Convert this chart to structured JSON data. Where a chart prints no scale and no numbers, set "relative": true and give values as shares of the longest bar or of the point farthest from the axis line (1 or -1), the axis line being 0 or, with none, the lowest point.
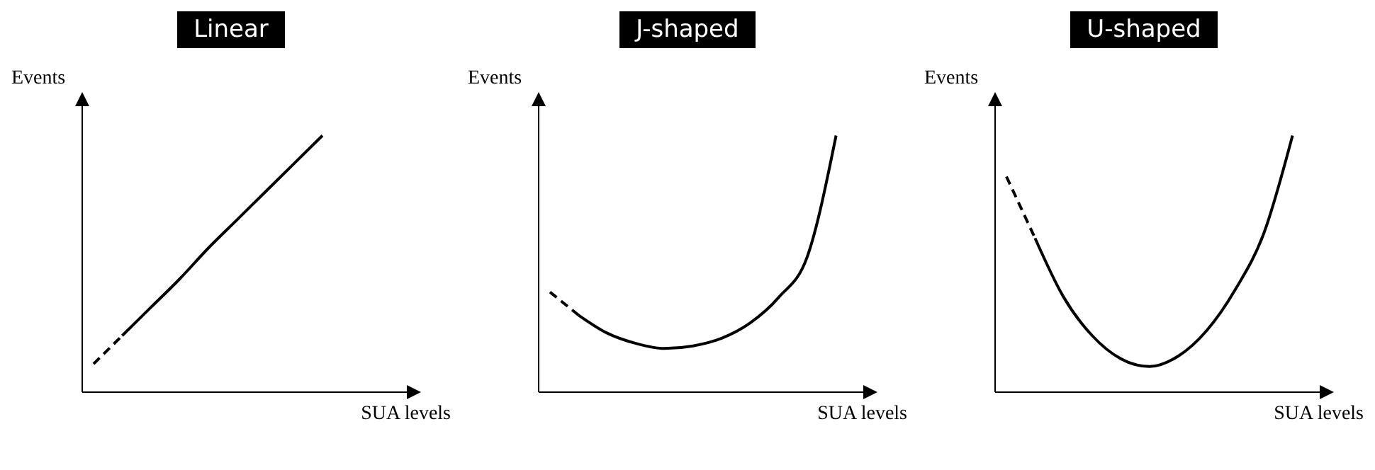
{
  "chart_data": [
    {
      "type": "line",
      "title": "Linear",
      "xlabel": "SUA levels",
      "ylabel": "Events",
      "relative": true,
      "categories": [
        null,
        null,
        null,
        null,
        null,
        null,
        null,
        null,
        null,
        null,
        null,
        null
      ],
      "series": [
        {
          "color": "#000000",
          "line_style": "dashed",
          "values": [
            0.11,
            0.22,
            null,
            null,
            null,
            null,
            null,
            null,
            null,
            null,
            null,
            null
          ]
        },
        {
          "color": "#000000",
          "line_style": "solid",
          "values": [
            null,
            0.22,
            0.33,
            0.44,
            0.56,
            0.67,
            0.78,
            0.89,
            1.0,
            null,
            null,
            null
          ]
        }
      ]
    },
    {
      "type": "line",
      "title": "J-shaped",
      "xlabel": "SUA levels",
      "ylabel": "Events",
      "relative": true,
      "categories": [
        null,
        null,
        null,
        null,
        null,
        null,
        null,
        null,
        null,
        null,
        null,
        null
      ],
      "series": [
        {
          "color": "#000000",
          "line_style": "dashed",
          "values": [
            0.39,
            0.3,
            null,
            null,
            null,
            null,
            null,
            null,
            null,
            null,
            null,
            null
          ]
        },
        {
          "color": "#000000",
          "line_style": "solid",
          "values": [
            null,
            0.3,
            0.23,
            0.19,
            0.17,
            0.18,
            0.21,
            0.27,
            0.37,
            0.53,
            1.0,
            null
          ]
        }
      ]
    },
    {
      "type": "line",
      "title": "U-shaped",
      "xlabel": "SUA levels",
      "ylabel": "Events",
      "relative": true,
      "categories": [
        null,
        null,
        null,
        null,
        null,
        null,
        null,
        null,
        null,
        null,
        null,
        null
      ],
      "series": [
        {
          "color": "#000000",
          "line_style": "dashed",
          "values": [
            0.84,
            0.6,
            null,
            null,
            null,
            null,
            null,
            null,
            null,
            null,
            null,
            null
          ]
        },
        {
          "color": "#000000",
          "line_style": "solid",
          "values": [
            null,
            0.6,
            0.37,
            0.22,
            0.13,
            0.1,
            0.14,
            0.24,
            0.4,
            0.62,
            1.0,
            null
          ]
        }
      ]
    }
  ]
}
